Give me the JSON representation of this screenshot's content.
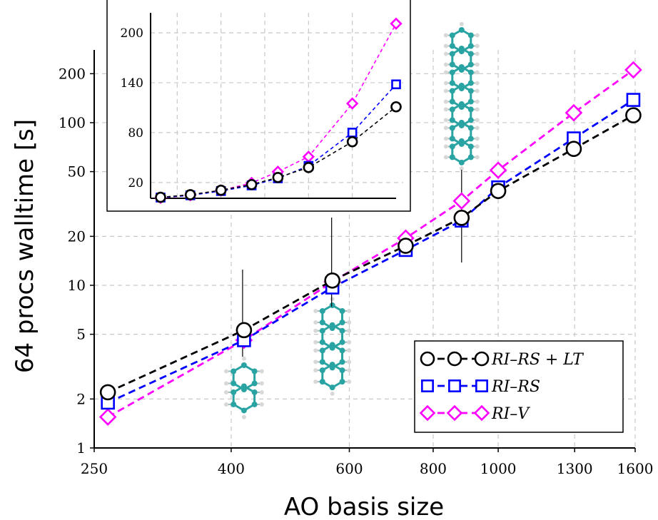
{
  "chart_data": [
    {
      "type": "line",
      "xlabel": "AO basis size",
      "ylabel": "64 procs walltime [s]",
      "xscale": "log",
      "yscale": "log",
      "xlim": [
        250,
        1600
      ],
      "ylim": [
        1,
        280
      ],
      "xticks": [
        250,
        400,
        600,
        800,
        1000,
        1300,
        1600
      ],
      "xtick_labels": [
        "250",
        "400",
        "600",
        "800",
        "1000",
        "1300",
        "1600"
      ],
      "yticks": [
        1,
        2,
        5,
        10,
        20,
        50,
        100,
        200
      ],
      "ytick_labels": [
        "1",
        "2",
        "5",
        "10",
        "20",
        "50",
        "100",
        "200"
      ],
      "grid": true,
      "legend_position": "bottom-right",
      "x": [
        262,
        418,
        566,
        728,
        882,
        1000,
        1296,
        1590
      ],
      "series": [
        {
          "name": "RI–RS + LT",
          "color": "#000000",
          "marker": "circle",
          "values": [
            2.2,
            5.3,
            10.7,
            17.5,
            26.0,
            38.0,
            69.0,
            111.0
          ]
        },
        {
          "name": "RI–RS",
          "color": "#0000ff",
          "marker": "square",
          "values": [
            1.9,
            4.6,
            9.7,
            16.5,
            25.0,
            40.0,
            80.0,
            138.0
          ]
        },
        {
          "name": "RI–V",
          "color": "#ff00ff",
          "marker": "diamond",
          "values": [
            1.55,
            4.6,
            10.5,
            19.5,
            33.0,
            51.0,
            115.0,
            211.0
          ]
        }
      ]
    },
    {
      "type": "line",
      "position": "inset top-left",
      "xscale": "linear",
      "yscale": "linear",
      "ylim": [
        1,
        224
      ],
      "yticks": [
        20,
        80,
        140,
        200
      ],
      "ytick_labels": [
        "20",
        "80",
        "140",
        "200"
      ],
      "grid": true,
      "x": [
        262,
        330,
        400,
        470,
        530,
        600,
        700,
        800
      ],
      "series": [
        {
          "name": "RI–RS + LT",
          "color": "#000000",
          "marker": "circle",
          "values": [
            2.2,
            5.3,
            10.7,
            17.5,
            26.0,
            38.0,
            69.0,
            111.0
          ]
        },
        {
          "name": "RI–RS",
          "color": "#0000ff",
          "marker": "square",
          "values": [
            1.9,
            4.6,
            9.7,
            16.5,
            25.0,
            40.0,
            80.0,
            138.0
          ]
        },
        {
          "name": "RI–V",
          "color": "#ff00ff",
          "marker": "diamond",
          "values": [
            1.55,
            4.6,
            10.5,
            19.5,
            33.0,
            51.0,
            115.0,
            211.0
          ]
        }
      ]
    }
  ],
  "molecules": [
    {
      "name": "naphthalene-icon",
      "rings": 2,
      "x": 418
    },
    {
      "name": "tetracene-icon",
      "rings": 4,
      "x": 566
    },
    {
      "name": "heptacene-icon",
      "rings": 7,
      "x": 882
    }
  ],
  "colors": {
    "black": "#000000",
    "blue": "#0000ff",
    "magenta": "#ff00ff",
    "carbon": "#2aa3a3",
    "hydrogen": "#d8d8d8"
  }
}
